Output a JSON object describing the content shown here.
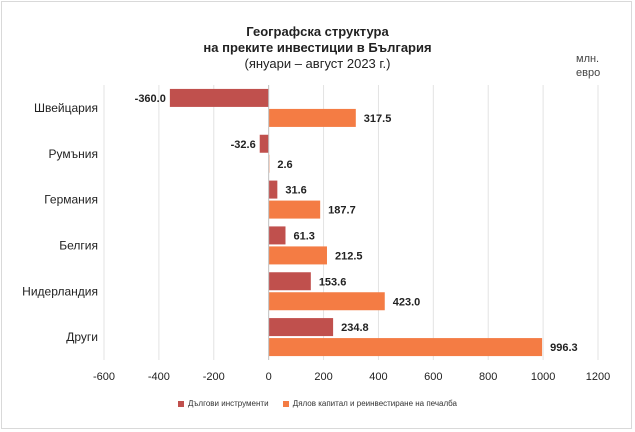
{
  "chart_data": {
    "type": "bar",
    "orientation": "horizontal",
    "title_line1": "Географска структура",
    "title_line2": "на преките инвестиции в България",
    "subtitle": "(януари – август 2023 г.)",
    "unit_line1": "млн.",
    "unit_line2": "евро",
    "categories": [
      "Швейцария",
      "Румъния",
      "Германия",
      "Белгия",
      "Нидерландия",
      "Други"
    ],
    "series": [
      {
        "name": "Дългови инструменти",
        "color": "#c0504d",
        "values": [
          -360.0,
          -32.6,
          31.6,
          61.3,
          153.6,
          234.8
        ]
      },
      {
        "name": "Дялов капитал и реинвестиране на печалба",
        "color": "#f47c44",
        "values": [
          317.5,
          2.6,
          187.7,
          212.5,
          423.0,
          996.3
        ]
      }
    ],
    "xlim": [
      -600,
      1200
    ],
    "xticks": [
      -600,
      -400,
      -200,
      0,
      200,
      400,
      600,
      800,
      1000,
      1200
    ],
    "grid": true,
    "legend_position": "bottom"
  }
}
